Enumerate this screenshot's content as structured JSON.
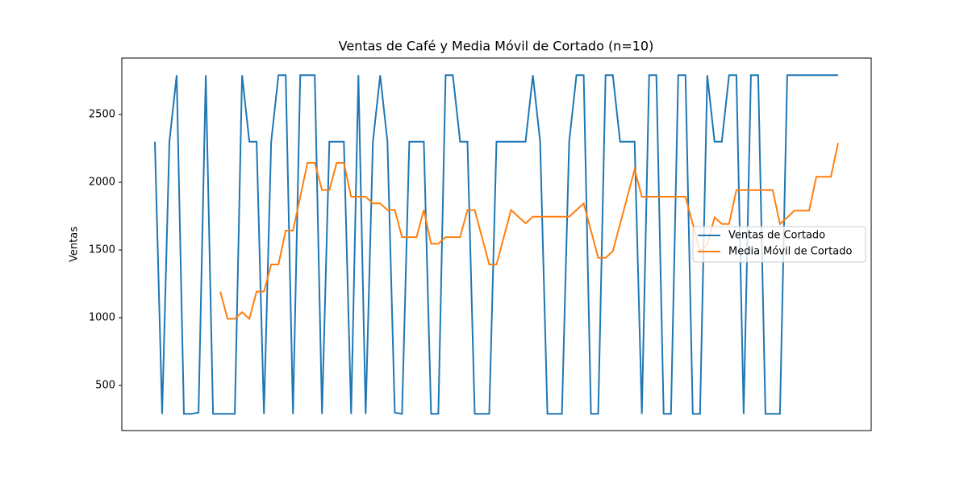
{
  "chart_data": {
    "type": "line",
    "title": "Ventas de Café y Media Móvil de Cortado (n=10)",
    "ylabel": "Ventas",
    "ylim": [
      167,
      2917
    ],
    "yticks": [
      500,
      1000,
      1500,
      2000,
      2500
    ],
    "legend": "center right",
    "series": [
      {
        "name": "Ventas de Cortado",
        "color": "#1f77b4",
        "values": [
          2300,
          290,
          2300,
          2790,
          290,
          290,
          300,
          2790,
          290,
          290,
          290,
          290,
          2790,
          2300,
          2300,
          290,
          2300,
          2790,
          2790,
          290,
          2790,
          2790,
          2790,
          290,
          2300,
          2300,
          2300,
          290,
          2790,
          290,
          2300,
          2790,
          2300,
          300,
          290,
          2300,
          2300,
          2300,
          290,
          290,
          2790,
          2790,
          2300,
          2300,
          290,
          290,
          290,
          2300,
          2300,
          2300,
          2300,
          2300,
          2790,
          2300,
          290,
          290,
          290,
          2300,
          2790,
          2790,
          290,
          290,
          2790,
          2790,
          2300,
          2300,
          2300,
          290,
          2790,
          2790,
          290,
          290,
          2790,
          2790,
          290,
          290,
          2790,
          2300,
          2300,
          2790,
          2790,
          290,
          2790,
          2790,
          290,
          290,
          290,
          2790,
          2790,
          2790,
          2790,
          2790,
          2790,
          2790,
          2790
        ]
      },
      {
        "name": "Media Móvil de Cortado",
        "color": "#ff7f0e",
        "values": [
          null,
          null,
          null,
          null,
          null,
          null,
          null,
          null,
          null,
          1193,
          992,
          992,
          1041,
          992,
          1193,
          1193,
          1393,
          1393,
          1643,
          1643,
          1893,
          2143,
          2143,
          1942,
          1942,
          2143,
          2143,
          1893,
          1893,
          1893,
          1844,
          1844,
          1795,
          1796,
          1595,
          1595,
          1595,
          1796,
          1546,
          1546,
          1595,
          1595,
          1595,
          1795,
          1795,
          1594,
          1393,
          1393,
          1594,
          1795,
          1746,
          1697,
          1746,
          1746,
          1746,
          1746,
          1746,
          1746,
          1795,
          1844,
          1643,
          1442,
          1442,
          1491,
          1692,
          1893,
          2094,
          1893,
          1893,
          1893,
          1893,
          1893,
          1893,
          1893,
          1692,
          1491,
          1540,
          1741,
          1692,
          1692,
          1942,
          1942,
          1942,
          1942,
          1942,
          1942,
          1692,
          1741,
          1790,
          1790,
          1790,
          2040,
          2040,
          2040,
          2290
        ]
      }
    ]
  }
}
